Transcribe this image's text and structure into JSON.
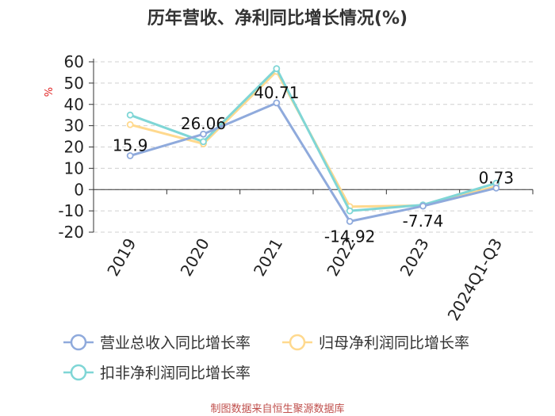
{
  "title": "历年营收、净利同比增长情况(%)",
  "source": "制图数据来自恒生聚源数据库",
  "chart_data": {
    "type": "line",
    "categories": [
      "2019",
      "2020",
      "2021",
      "2022",
      "2023",
      "2024Q1-Q3"
    ],
    "ylabel": "%",
    "ylim": [
      -20,
      60
    ],
    "yticks": [
      60,
      50,
      40,
      30,
      20,
      10,
      0,
      -10,
      -20
    ],
    "grid": true,
    "legend_position": "bottom",
    "series": [
      {
        "name": "营业总收入同比增长率",
        "color": "#8faadc",
        "values": [
          15.9,
          26.06,
          40.71,
          -14.92,
          -7.74,
          0.73
        ],
        "labels": [
          "15.9",
          "26.06",
          "40.71",
          "-14.92",
          "-7.74",
          "0.73"
        ]
      },
      {
        "name": "归母净利润同比增长率",
        "color": "#ffd98e",
        "values": [
          30.5,
          21.5,
          55.5,
          -8.0,
          -7.5,
          1.5
        ]
      },
      {
        "name": "扣非净利润同比增长率",
        "color": "#7fd6d6",
        "values": [
          35.0,
          22.5,
          56.8,
          -10.0,
          -7.2,
          3.0
        ]
      }
    ]
  }
}
